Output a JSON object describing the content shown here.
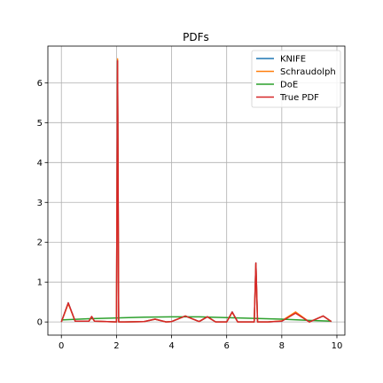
{
  "chart_data": {
    "type": "line",
    "title": "PDFs",
    "xlabel": "",
    "ylabel": "",
    "xlim": [
      -0.49,
      10.29
    ],
    "ylim": [
      -0.33,
      6.92
    ],
    "xticks": [
      0,
      2,
      4,
      6,
      8,
      10
    ],
    "yticks": [
      0,
      1,
      2,
      3,
      4,
      5,
      6
    ],
    "grid": true,
    "legend": "top-right",
    "series": [
      {
        "name": "KNIFE",
        "color": "#1f77b4",
        "x": [
          0,
          0.25,
          0.5,
          1.0,
          1.1,
          1.2,
          2.0,
          2.04,
          2.08,
          2.3,
          3.0,
          3.4,
          3.8,
          4.0,
          4.5,
          5.0,
          5.3,
          5.6,
          6.0,
          6.2,
          6.4,
          7.0,
          7.06,
          7.12,
          7.5,
          8.0,
          8.5,
          9.0,
          9.5,
          9.8
        ],
        "y": [
          0.0,
          0.48,
          0.02,
          0.02,
          0.13,
          0.02,
          0.0,
          6.55,
          0.0,
          0.0,
          0.01,
          0.07,
          0.0,
          0.01,
          0.15,
          0.01,
          0.13,
          0.0,
          0.0,
          0.25,
          0.0,
          0.0,
          1.48,
          0.0,
          0.0,
          0.02,
          0.24,
          0.0,
          0.15,
          0.01
        ]
      },
      {
        "name": "Schraudolph",
        "color": "#ff7f0e",
        "x": [
          0,
          0.25,
          0.5,
          1.0,
          1.1,
          1.2,
          2.0,
          2.04,
          2.08,
          2.3,
          3.0,
          3.4,
          3.8,
          4.0,
          4.5,
          5.0,
          5.3,
          5.6,
          6.0,
          6.2,
          6.4,
          7.0,
          7.06,
          7.12,
          7.5,
          8.0,
          8.5,
          9.0,
          9.5,
          9.8
        ],
        "y": [
          0.0,
          0.46,
          0.02,
          0.02,
          0.12,
          0.02,
          0.0,
          6.6,
          0.0,
          0.0,
          0.01,
          0.07,
          0.0,
          0.01,
          0.15,
          0.01,
          0.13,
          0.0,
          0.0,
          0.24,
          0.0,
          0.0,
          1.46,
          0.0,
          0.0,
          0.03,
          0.25,
          0.0,
          0.15,
          0.01
        ]
      },
      {
        "name": "DoE",
        "color": "#2ca02c",
        "x": [
          0,
          1,
          2,
          3,
          4,
          5,
          6,
          7,
          8,
          9,
          9.8
        ],
        "y": [
          0.05,
          0.08,
          0.1,
          0.12,
          0.13,
          0.13,
          0.11,
          0.09,
          0.07,
          0.04,
          0.02
        ]
      },
      {
        "name": "True PDF",
        "color": "#d62728",
        "x": [
          0,
          0.25,
          0.5,
          1.0,
          1.1,
          1.2,
          2.0,
          2.04,
          2.08,
          2.3,
          3.0,
          3.4,
          3.8,
          4.0,
          4.5,
          5.0,
          5.3,
          5.6,
          6.0,
          6.2,
          6.4,
          7.0,
          7.06,
          7.12,
          7.5,
          8.0,
          8.5,
          9.0,
          9.5,
          9.8
        ],
        "y": [
          0.0,
          0.48,
          0.02,
          0.02,
          0.14,
          0.02,
          0.0,
          6.55,
          0.0,
          0.0,
          0.01,
          0.07,
          0.0,
          0.01,
          0.15,
          0.01,
          0.13,
          0.0,
          0.0,
          0.25,
          0.0,
          0.0,
          1.48,
          0.0,
          0.0,
          0.02,
          0.22,
          0.0,
          0.15,
          0.01
        ]
      }
    ]
  }
}
